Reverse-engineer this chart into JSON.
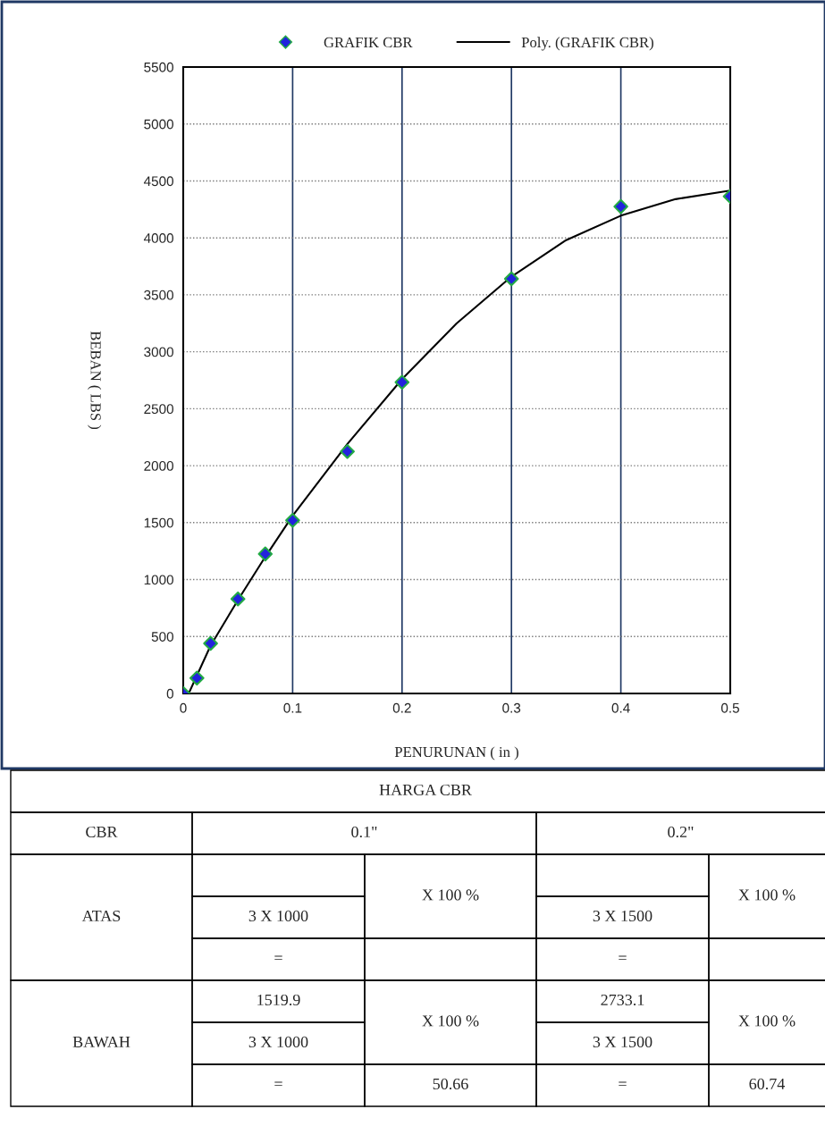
{
  "chart_data": {
    "type": "scatter",
    "xlabel": "PENURUNAN ( in )",
    "ylabel": "BEBAN ( LBS )",
    "xlim": [
      0,
      0.5
    ],
    "xticks": [
      0,
      0.1,
      0.2,
      0.3,
      0.4,
      0.5
    ],
    "ylim": [
      0,
      5500
    ],
    "yticks": [
      0,
      500,
      1000,
      1500,
      2000,
      2500,
      3000,
      3500,
      4000,
      4500,
      5000,
      5500
    ],
    "grid": true,
    "legend": "top",
    "series": [
      {
        "name": "GRAFIK CBR",
        "marker": "diamond",
        "color": "#2222dd",
        "x": [
          0,
          0.0125,
          0.025,
          0.05,
          0.075,
          0.1,
          0.15,
          0.2,
          0.3,
          0.4,
          0.5
        ],
        "values": [
          0,
          135,
          440,
          830,
          1225,
          1520,
          2125,
          2733,
          3640,
          4275,
          4365
        ]
      },
      {
        "name": "Poly. (GRAFIK CBR)",
        "type": "line",
        "color": "#000000",
        "line_style": "solid",
        "x": [
          0.005,
          0.025,
          0.05,
          0.075,
          0.1,
          0.15,
          0.2,
          0.25,
          0.3,
          0.35,
          0.4,
          0.45,
          0.5
        ],
        "values": [
          0,
          420,
          820,
          1200,
          1560,
          2190,
          2760,
          3250,
          3660,
          3980,
          4195,
          4340,
          4415
        ]
      }
    ],
    "annotations": [
      "HARGA CBR",
      "CBR",
      "0.1\"",
      "0.2\"",
      "ATAS",
      "3 X 1000",
      "X 100 %",
      "3 X 1500",
      "X 100 %",
      "=",
      "=",
      "BAWAH",
      "1519.9",
      "3 X 1000",
      "X 100 %",
      "2733.1",
      "3 X 1500",
      "X 100 %",
      "=",
      "50.66",
      "=",
      "60.74"
    ]
  }
}
